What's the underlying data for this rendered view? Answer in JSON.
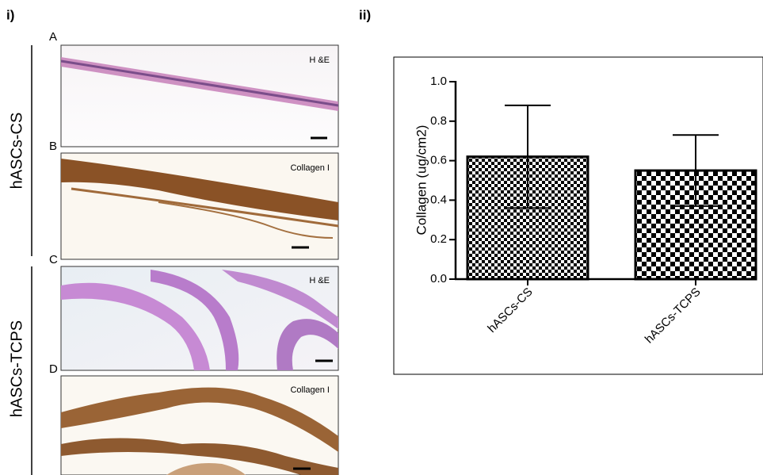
{
  "figure_labels": {
    "left": "i)",
    "right": "ii)"
  },
  "panels": {
    "group_labels": [
      "hASCs-CS",
      "hASCs-TCPS"
    ],
    "items": [
      {
        "letter": "A",
        "stain": "H &E"
      },
      {
        "letter": "B",
        "stain": "Collagen I"
      },
      {
        "letter": "C",
        "stain": "H &E"
      },
      {
        "letter": "D",
        "stain": "Collagen I"
      }
    ]
  },
  "chart_data": {
    "type": "bar",
    "y_label": "Collagen (ug/cm2)",
    "categories": [
      "hASCs-CS",
      "hASCs-TCPS"
    ],
    "values": [
      0.62,
      0.55
    ],
    "errors": [
      0.26,
      0.18
    ],
    "color": "#000000",
    "ylim": [
      0,
      1.0
    ],
    "yticks": [
      {
        "value": 0,
        "label": "0.0"
      },
      0.2,
      0.4,
      0.6,
      0.8,
      {
        "value": 1.0,
        "label": "1.0"
      }
    ]
  }
}
